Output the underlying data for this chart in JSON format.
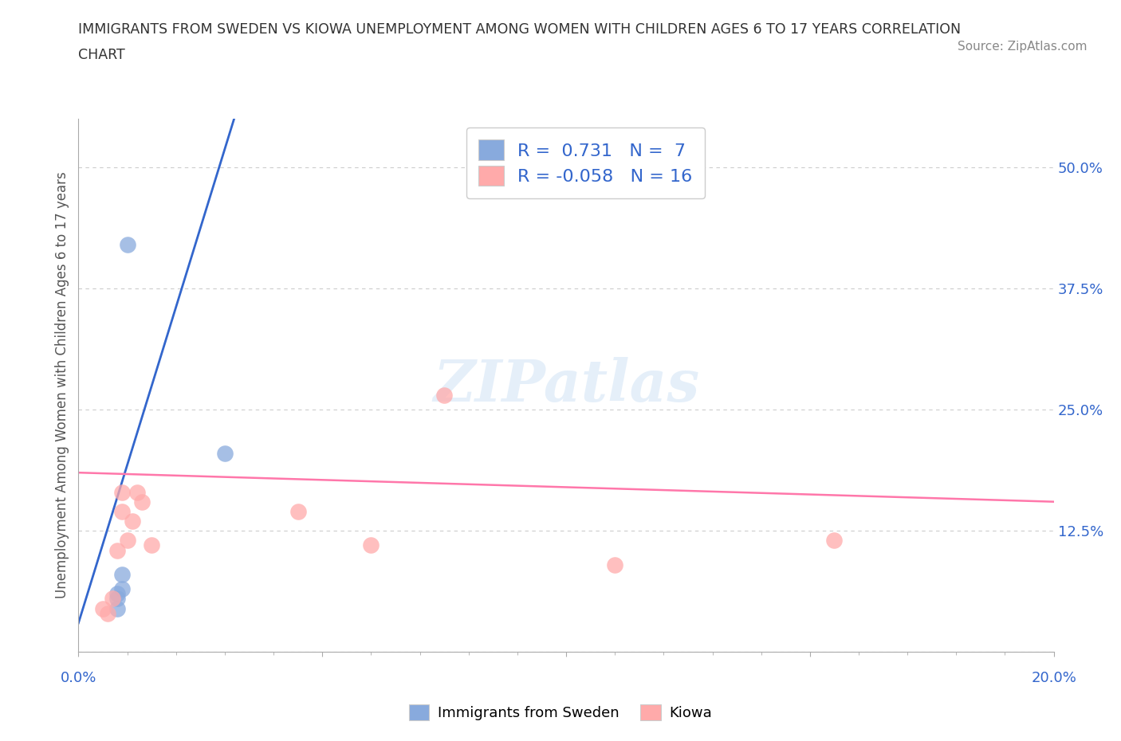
{
  "title_line1": "IMMIGRANTS FROM SWEDEN VS KIOWA UNEMPLOYMENT AMONG WOMEN WITH CHILDREN AGES 6 TO 17 YEARS CORRELATION",
  "title_line2": "CHART",
  "source_text": "Source: ZipAtlas.com",
  "xlabel": "Immigrants from Sweden",
  "ylabel": "Unemployment Among Women with Children Ages 6 to 17 years",
  "xlim": [
    0.0,
    0.2
  ],
  "ylim": [
    0.0,
    0.55
  ],
  "xtick_left_label": "0.0%",
  "xtick_right_label": "20.0%",
  "yticks": [
    0.0,
    0.125,
    0.25,
    0.375,
    0.5
  ],
  "ytick_labels": [
    "",
    "12.5%",
    "25.0%",
    "37.5%",
    "50.0%"
  ],
  "grid_color": "#cccccc",
  "background_color": "#ffffff",
  "blue_color": "#88aadd",
  "pink_color": "#ffaaaa",
  "blue_line_color": "#3366cc",
  "pink_line_color": "#ff77aa",
  "R_blue": 0.731,
  "N_blue": 7,
  "R_pink": -0.058,
  "N_pink": 16,
  "blue_scatter_x": [
    0.008,
    0.008,
    0.008,
    0.009,
    0.009,
    0.01,
    0.03
  ],
  "blue_scatter_y": [
    0.045,
    0.055,
    0.06,
    0.065,
    0.08,
    0.42,
    0.205
  ],
  "pink_scatter_x": [
    0.005,
    0.006,
    0.007,
    0.008,
    0.009,
    0.009,
    0.01,
    0.011,
    0.012,
    0.013,
    0.015,
    0.045,
    0.06,
    0.075,
    0.11,
    0.155
  ],
  "pink_scatter_y": [
    0.045,
    0.04,
    0.055,
    0.105,
    0.145,
    0.165,
    0.115,
    0.135,
    0.165,
    0.155,
    0.11,
    0.145,
    0.11,
    0.265,
    0.09,
    0.115
  ],
  "blue_line_x": [
    0.0,
    0.035
  ],
  "blue_line_y": [
    0.03,
    0.6
  ],
  "pink_line_x": [
    0.0,
    0.2
  ],
  "pink_line_y": [
    0.185,
    0.155
  ],
  "watermark_text": "ZIPatlas",
  "title_color": "#333333",
  "axis_label_color": "#555555",
  "tick_label_color": "#3366cc",
  "legend_text_color": "#3366cc",
  "bottom_legend_text_color": "#000000"
}
